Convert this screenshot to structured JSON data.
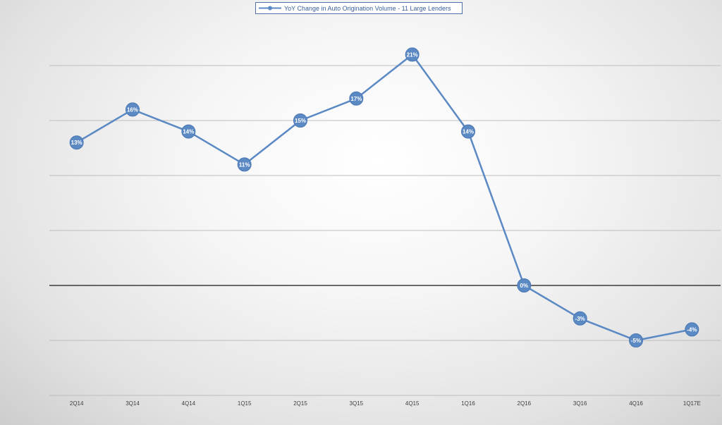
{
  "chart_data": {
    "type": "line",
    "title": "",
    "xlabel": "",
    "ylabel": "",
    "categories": [
      "2Q14",
      "3Q14",
      "4Q14",
      "1Q15",
      "2Q15",
      "3Q15",
      "4Q15",
      "1Q16",
      "2Q16",
      "3Q16",
      "4Q16",
      "1Q17E"
    ],
    "series": [
      {
        "name": "YoY Change in Auto Origination Volume - 11 Large Lenders",
        "values": [
          13,
          16,
          14,
          11,
          15,
          17,
          21,
          14,
          0,
          -3,
          -5,
          -4
        ],
        "labels": [
          "13%",
          "16%",
          "14%",
          "11%",
          "15%",
          "17%",
          "21%",
          "14%",
          "0%",
          "-3%",
          "-5%",
          "-4%"
        ]
      }
    ],
    "ylim": [
      -10,
      25
    ],
    "gridlines": [
      20,
      15,
      10,
      5,
      -5,
      -10
    ],
    "zero_line": 0,
    "y_tick_labels_visible": false,
    "legend_position": "top-center",
    "colors": {
      "line": "#5b89c4",
      "marker": "#5b89c4",
      "marker_text": "#ffffff",
      "grid": "#bdbdbd",
      "zero_line": "#3a3a3a",
      "axis_text": "#404040",
      "legend_text": "#3a5f9e"
    }
  }
}
